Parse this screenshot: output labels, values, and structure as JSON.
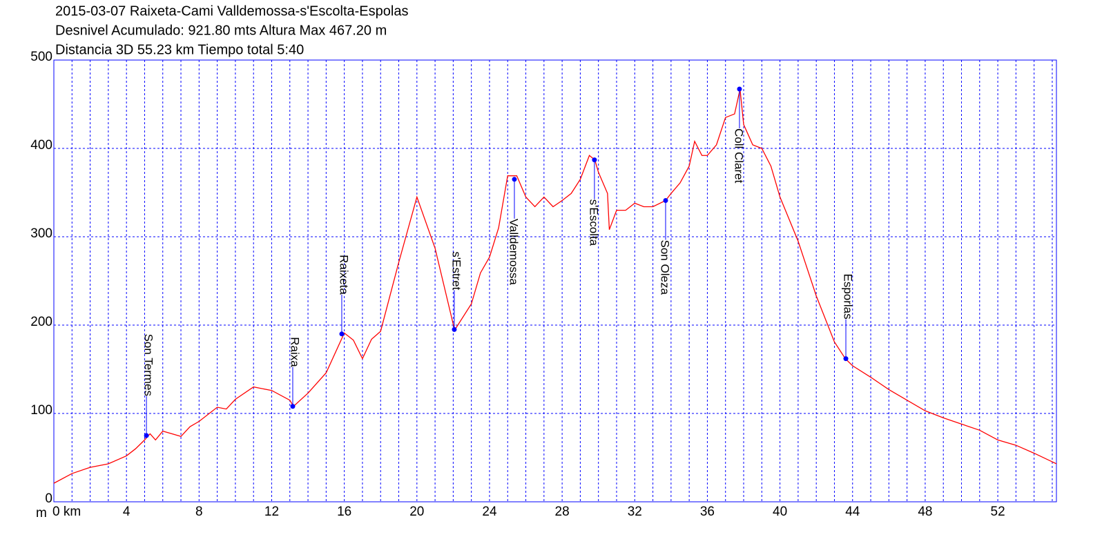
{
  "chart_data": {
    "type": "line",
    "title_lines": [
      "2015-03-07 Raixeta-Cami Valldemossa-s'Escolta-Espolas",
      "Desnivel Acumulado: 921.80 mts  Altura Max 467.20 m",
      "Distancia 3D 55.23 km  Tiempo total 5:40"
    ],
    "y_label": "m",
    "color": "#ff0000",
    "x": [
      0,
      1,
      2,
      3,
      4,
      4.5,
      5,
      5.3,
      5.6,
      6,
      7,
      7.5,
      8,
      9,
      9.5,
      10,
      11,
      12,
      13,
      13.2,
      14,
      15,
      16,
      16.5,
      17,
      17.5,
      18,
      19,
      20,
      21,
      22,
      22.1,
      23,
      23.5,
      24,
      24.5,
      25,
      25.5,
      26,
      26.5,
      27,
      27.5,
      28,
      28.5,
      29,
      29.5,
      29.8,
      30,
      30.5,
      30.6,
      31,
      31.5,
      32,
      32.5,
      33,
      33.7,
      34,
      34.5,
      35,
      35.3,
      35.7,
      36,
      36.5,
      37,
      37.5,
      37.8,
      38,
      38.5,
      39,
      39.5,
      40,
      41,
      42,
      43,
      43.6,
      44,
      45,
      46,
      47,
      48,
      49,
      50,
      51,
      52,
      53,
      54,
      55.23
    ],
    "values": [
      21,
      32,
      39,
      43,
      52,
      60,
      70,
      77,
      70,
      80,
      74,
      85,
      91,
      107,
      105,
      116,
      130,
      126,
      115,
      108,
      123,
      146,
      191,
      183,
      162,
      184,
      193,
      271,
      345,
      287,
      201,
      195,
      224,
      259,
      277,
      310,
      369,
      369,
      345,
      334,
      345,
      334,
      341,
      349,
      365,
      392,
      387,
      373,
      349,
      308,
      330,
      330,
      338,
      334,
      334,
      341,
      349,
      361,
      380,
      408,
      392,
      392,
      404,
      435,
      439,
      467,
      427,
      404,
      400,
      380,
      345,
      295,
      233,
      181,
      162,
      154,
      141,
      127,
      115,
      103,
      95,
      88,
      81,
      70,
      64,
      55,
      43
    ],
    "waypoints": [
      {
        "name": "Son Termes",
        "x": 5.1,
        "y": 75,
        "label_position": "above"
      },
      {
        "name": "Raixa",
        "x": 13.16,
        "y": 108,
        "label_position": "above"
      },
      {
        "name": "Raixeta",
        "x": 15.86,
        "y": 190,
        "label_position": "above"
      },
      {
        "name": "s'Estret",
        "x": 22.06,
        "y": 195,
        "label_position": "above"
      },
      {
        "name": "Valldemossa",
        "x": 25.37,
        "y": 365,
        "label_position": "below"
      },
      {
        "name": "s'Escolta",
        "x": 29.78,
        "y": 387,
        "label_position": "below"
      },
      {
        "name": "Son Oleza",
        "x": 33.7,
        "y": 341,
        "label_position": "below"
      },
      {
        "name": "Coll Claret",
        "x": 37.77,
        "y": 467.2,
        "label_position": "below"
      },
      {
        "name": "Esporlas",
        "x": 43.63,
        "y": 162,
        "label_position": "above"
      }
    ],
    "marker_color": "#0000ff",
    "xlim": [
      0,
      55.23
    ],
    "ylim": [
      0,
      500
    ],
    "xticks": [
      {
        "value": 0,
        "label": "0 km"
      },
      4,
      8,
      12,
      16,
      20,
      24,
      28,
      32,
      36,
      40,
      44,
      48,
      52
    ],
    "yticks": [
      0,
      100,
      200,
      300,
      400,
      500
    ],
    "xgrid": [
      1,
      2,
      3,
      4,
      5,
      6,
      7,
      8,
      9,
      10,
      11,
      12,
      13,
      14,
      15,
      16,
      17,
      18,
      19,
      20,
      21,
      22,
      23,
      24,
      25,
      26,
      27,
      28,
      29,
      30,
      31,
      32,
      33,
      34,
      35,
      36,
      37,
      38,
      39,
      40,
      41,
      42,
      43,
      44,
      45,
      46,
      47,
      48,
      49,
      50,
      51,
      52,
      53,
      54,
      55
    ],
    "grid": true
  }
}
